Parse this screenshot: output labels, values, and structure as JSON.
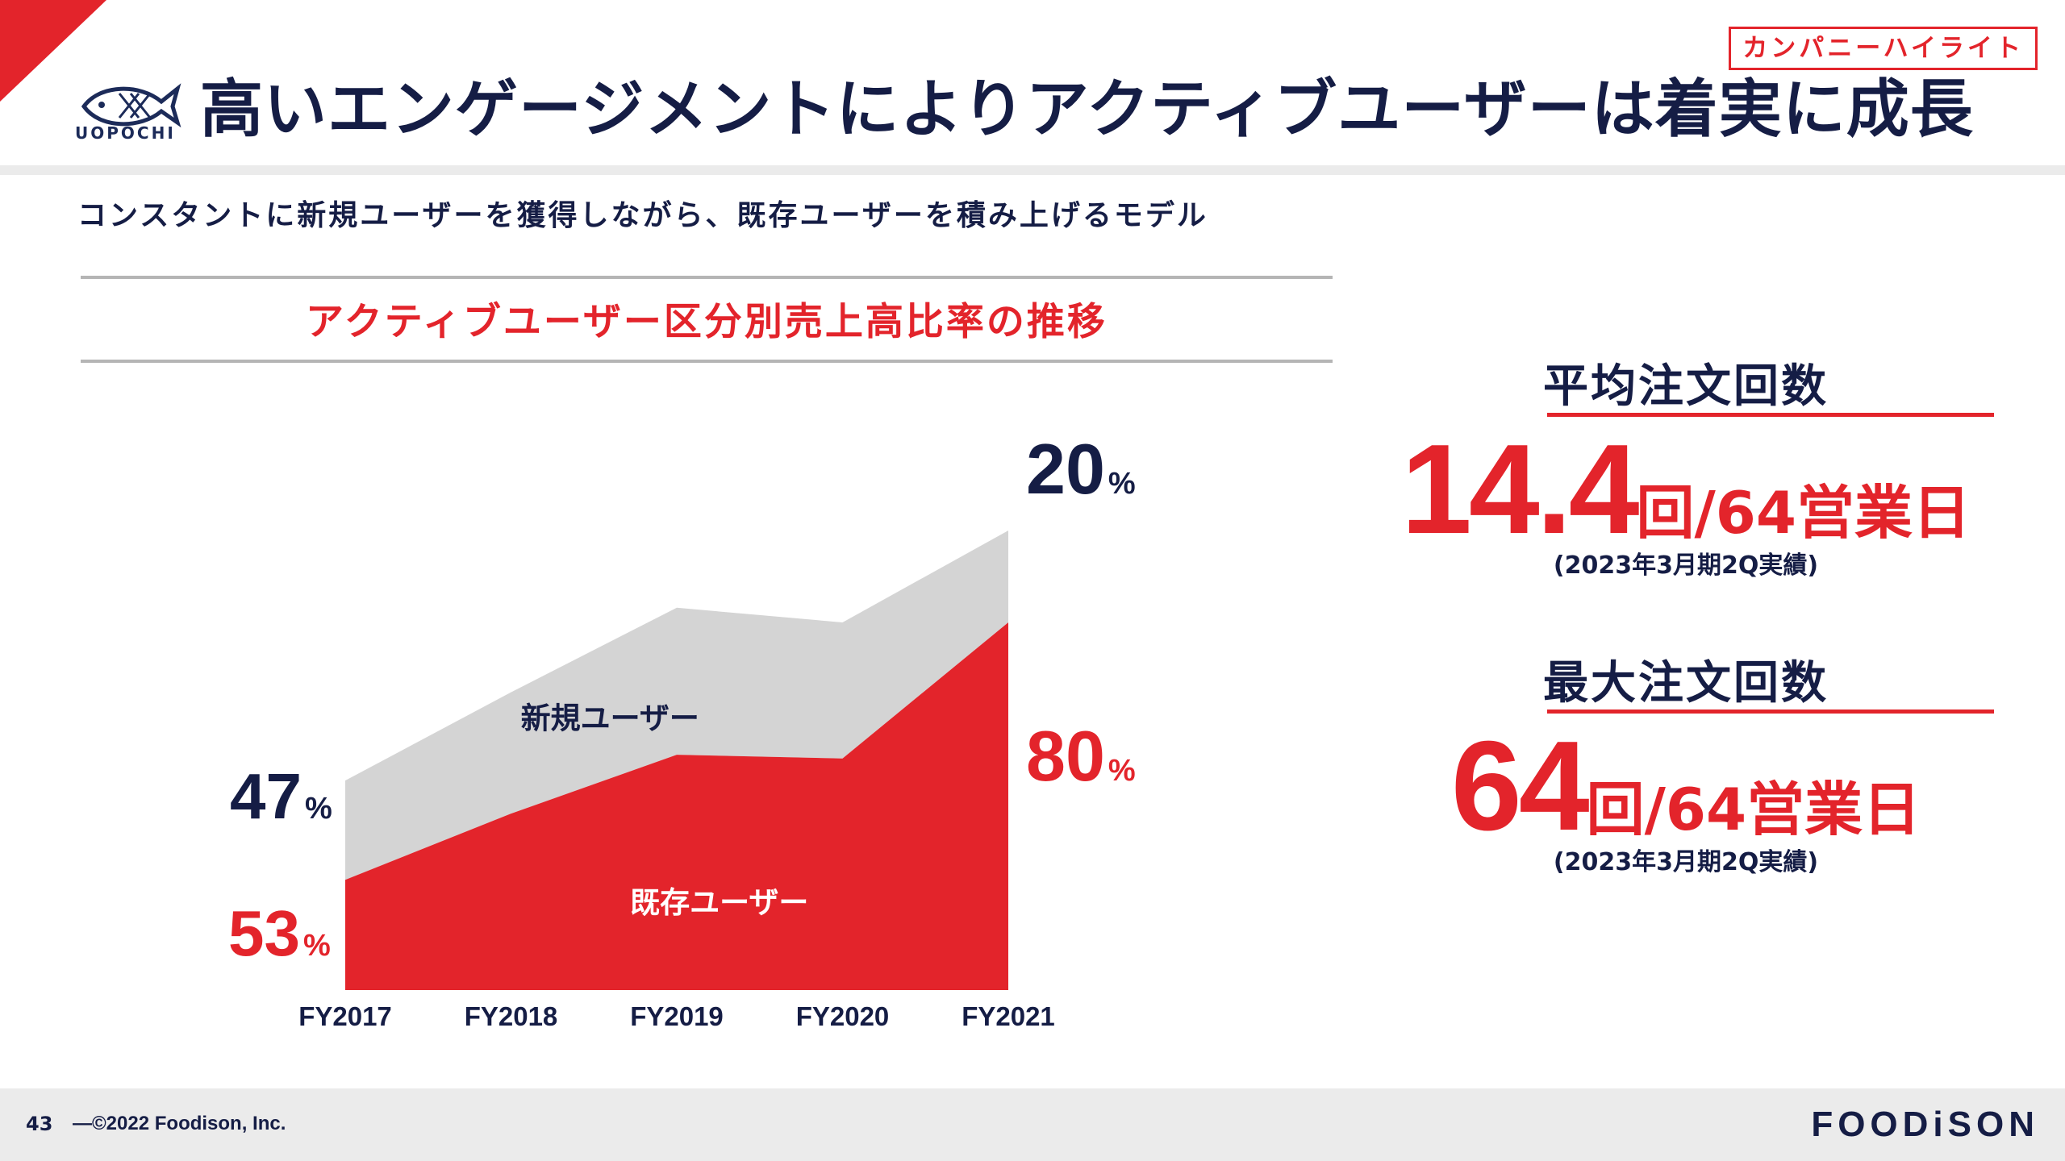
{
  "header": {
    "logo_text": "UOPOCHI",
    "title": "高いエンゲージメントによりアクティブユーザーは着実に成長",
    "tag": "カンパニーハイライト"
  },
  "subtitle": "コンスタントに新規ユーザーを獲得しながら、既存ユーザーを積み上げるモデル",
  "chart_data": {
    "type": "area",
    "title": "アクティブユーザー区分別売上高比率の推移",
    "categories": [
      "FY2017",
      "FY2018",
      "FY2019",
      "FY2020",
      "FY2021"
    ],
    "series": [
      {
        "name": "既存ユーザー",
        "values": [
          0.3,
          0.48,
          0.64,
          0.63,
          1.0
        ],
        "color": "#e3242b"
      },
      {
        "name": "新規ユーザー",
        "values": [
          0.27,
          0.33,
          0.4,
          0.37,
          0.25
        ],
        "color": "#d4d4d4"
      }
    ],
    "stacked": true,
    "start_labels": {
      "new": "47",
      "existing": "53",
      "unit": "%"
    },
    "end_labels": {
      "new": "20",
      "existing": "80",
      "unit": "%"
    },
    "ylim": [
      0,
      1.25
    ]
  },
  "metrics": [
    {
      "label": "平均注文回数",
      "value": "14.4",
      "suffix": "回/64営業日",
      "note": "(2023年3月期2Q実績)"
    },
    {
      "label": "最大注文回数",
      "value": "64",
      "suffix": "回/64営業日",
      "note": "(2023年3月期2Q実績)"
    }
  ],
  "footer": {
    "page": "43",
    "copyright": "©2022 Foodison, Inc.",
    "brand": "FOODiSON"
  }
}
